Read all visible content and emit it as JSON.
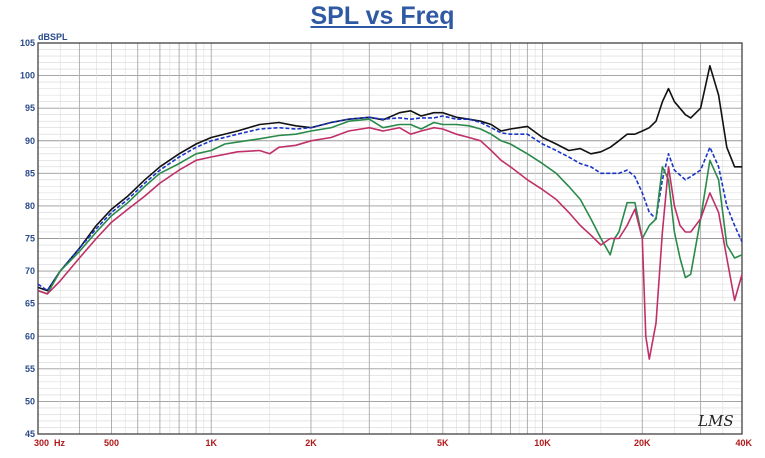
{
  "title": "SPL vs Freq",
  "chart_data": {
    "type": "line",
    "title": "SPL vs Freq",
    "xlabel": "Hz",
    "ylabel": "dBSPL",
    "xscale": "log",
    "xlim": [
      300,
      40000
    ],
    "ylim": [
      45,
      105
    ],
    "yticks": [
      45,
      50,
      55,
      60,
      65,
      70,
      75,
      80,
      85,
      90,
      95,
      100,
      105
    ],
    "xtick_labels": [
      {
        "x": 300,
        "label": "300"
      },
      {
        "x": 500,
        "label": "500"
      },
      {
        "x": 1000,
        "label": "1K"
      },
      {
        "x": 2000,
        "label": "2K"
      },
      {
        "x": 5000,
        "label": "5K"
      },
      {
        "x": 10000,
        "label": "10K"
      },
      {
        "x": 20000,
        "label": "20K"
      },
      {
        "x": 40000,
        "label": "40K"
      }
    ],
    "grid": true,
    "legend": "none",
    "series": [
      {
        "color": "#111111",
        "dash": "solid",
        "points": [
          [
            300,
            67.5
          ],
          [
            320,
            67
          ],
          [
            350,
            70
          ],
          [
            400,
            73.5
          ],
          [
            450,
            77
          ],
          [
            500,
            79.5
          ],
          [
            560,
            81.5
          ],
          [
            630,
            84
          ],
          [
            700,
            86
          ],
          [
            800,
            88
          ],
          [
            900,
            89.5
          ],
          [
            1000,
            90.5
          ],
          [
            1200,
            91.5
          ],
          [
            1400,
            92.5
          ],
          [
            1600,
            92.8
          ],
          [
            1800,
            92.3
          ],
          [
            2000,
            92
          ],
          [
            2300,
            92.8
          ],
          [
            2600,
            93.3
          ],
          [
            3000,
            93.6
          ],
          [
            3300,
            93.2
          ],
          [
            3700,
            94.3
          ],
          [
            4000,
            94.6
          ],
          [
            4300,
            93.8
          ],
          [
            4700,
            94.3
          ],
          [
            5000,
            94.3
          ],
          [
            5500,
            93.6
          ],
          [
            6000,
            93.3
          ],
          [
            6500,
            93
          ],
          [
            7000,
            92.5
          ],
          [
            7500,
            91.5
          ],
          [
            8000,
            91.8
          ],
          [
            9000,
            92.2
          ],
          [
            10000,
            90.5
          ],
          [
            11000,
            89.5
          ],
          [
            12000,
            88.5
          ],
          [
            13000,
            88.8
          ],
          [
            14000,
            88
          ],
          [
            15000,
            88.3
          ],
          [
            16000,
            89
          ],
          [
            17000,
            90
          ],
          [
            18000,
            91
          ],
          [
            19000,
            91
          ],
          [
            20000,
            91.5
          ],
          [
            21000,
            92
          ],
          [
            22000,
            93
          ],
          [
            23000,
            96
          ],
          [
            24000,
            98
          ],
          [
            25000,
            96
          ],
          [
            27000,
            94
          ],
          [
            28000,
            93.5
          ],
          [
            30000,
            95
          ],
          [
            32000,
            101.5
          ],
          [
            34000,
            97
          ],
          [
            36000,
            89
          ],
          [
            38000,
            86
          ],
          [
            40000,
            86
          ]
        ]
      },
      {
        "color": "#1a35c8",
        "dash": "4,2",
        "points": [
          [
            300,
            68
          ],
          [
            320,
            67
          ],
          [
            350,
            70
          ],
          [
            400,
            73.5
          ],
          [
            450,
            76.5
          ],
          [
            500,
            79
          ],
          [
            560,
            81
          ],
          [
            630,
            83.5
          ],
          [
            700,
            85.5
          ],
          [
            800,
            87.5
          ],
          [
            900,
            89
          ],
          [
            1000,
            90
          ],
          [
            1200,
            91
          ],
          [
            1400,
            91.8
          ],
          [
            1600,
            92
          ],
          [
            1800,
            91.8
          ],
          [
            2000,
            92
          ],
          [
            2300,
            92.8
          ],
          [
            2600,
            93.3
          ],
          [
            3000,
            93.6
          ],
          [
            3300,
            93.3
          ],
          [
            3700,
            93.5
          ],
          [
            4000,
            93.3
          ],
          [
            4300,
            93.5
          ],
          [
            4700,
            93.5
          ],
          [
            5000,
            93.8
          ],
          [
            5500,
            93.3
          ],
          [
            6000,
            93.3
          ],
          [
            6500,
            92.8
          ],
          [
            7000,
            92
          ],
          [
            7500,
            91.2
          ],
          [
            8000,
            91
          ],
          [
            9000,
            91
          ],
          [
            10000,
            89.5
          ],
          [
            11000,
            88.5
          ],
          [
            12000,
            87.5
          ],
          [
            13000,
            86.5
          ],
          [
            14000,
            86
          ],
          [
            15000,
            85
          ],
          [
            16000,
            85
          ],
          [
            17000,
            85
          ],
          [
            18000,
            85.5
          ],
          [
            19000,
            84.5
          ],
          [
            20000,
            82
          ],
          [
            21000,
            79
          ],
          [
            22000,
            78
          ],
          [
            23000,
            84
          ],
          [
            24000,
            88
          ],
          [
            25000,
            85.5
          ],
          [
            27000,
            84
          ],
          [
            28000,
            84.5
          ],
          [
            30000,
            85.5
          ],
          [
            32000,
            89
          ],
          [
            34000,
            86
          ],
          [
            36000,
            80
          ],
          [
            38000,
            77
          ],
          [
            40000,
            74.5
          ]
        ]
      },
      {
        "color": "#2a8a4a",
        "dash": "solid",
        "points": [
          [
            300,
            67
          ],
          [
            320,
            66.5
          ],
          [
            350,
            70
          ],
          [
            400,
            73
          ],
          [
            450,
            76
          ],
          [
            500,
            78.5
          ],
          [
            560,
            80.5
          ],
          [
            630,
            83
          ],
          [
            700,
            85
          ],
          [
            800,
            86.5
          ],
          [
            900,
            88
          ],
          [
            1000,
            88.5
          ],
          [
            1100,
            89.5
          ],
          [
            1200,
            89.8
          ],
          [
            1400,
            90.3
          ],
          [
            1600,
            90.8
          ],
          [
            1800,
            91
          ],
          [
            2000,
            91.5
          ],
          [
            2300,
            92
          ],
          [
            2600,
            93
          ],
          [
            3000,
            93.3
          ],
          [
            3300,
            92
          ],
          [
            3700,
            92.5
          ],
          [
            4000,
            92.5
          ],
          [
            4300,
            91.8
          ],
          [
            4700,
            92.8
          ],
          [
            5000,
            92.5
          ],
          [
            5500,
            92.5
          ],
          [
            6000,
            92.3
          ],
          [
            6500,
            91.8
          ],
          [
            7000,
            91
          ],
          [
            7500,
            90
          ],
          [
            8000,
            89.5
          ],
          [
            9000,
            88
          ],
          [
            10000,
            86.5
          ],
          [
            11000,
            85
          ],
          [
            12000,
            83
          ],
          [
            13000,
            81
          ],
          [
            14000,
            78
          ],
          [
            15000,
            75
          ],
          [
            16000,
            72.5
          ],
          [
            16500,
            75
          ],
          [
            17000,
            76
          ],
          [
            18000,
            80.5
          ],
          [
            19000,
            80.5
          ],
          [
            20000,
            75
          ],
          [
            21000,
            77
          ],
          [
            22000,
            78
          ],
          [
            23000,
            86
          ],
          [
            24000,
            84
          ],
          [
            25000,
            76
          ],
          [
            26000,
            72
          ],
          [
            27000,
            69
          ],
          [
            28000,
            69.5
          ],
          [
            30000,
            78
          ],
          [
            32000,
            87
          ],
          [
            34000,
            84
          ],
          [
            36000,
            74
          ],
          [
            38000,
            72
          ],
          [
            40000,
            72.5
          ]
        ]
      },
      {
        "color": "#c03068",
        "dash": "solid",
        "points": [
          [
            300,
            67
          ],
          [
            320,
            66.5
          ],
          [
            350,
            68.5
          ],
          [
            400,
            72
          ],
          [
            450,
            75
          ],
          [
            500,
            77.5
          ],
          [
            560,
            79.5
          ],
          [
            630,
            81.5
          ],
          [
            700,
            83.5
          ],
          [
            800,
            85.5
          ],
          [
            900,
            87
          ],
          [
            1000,
            87.5
          ],
          [
            1200,
            88.3
          ],
          [
            1400,
            88.5
          ],
          [
            1500,
            88
          ],
          [
            1600,
            89
          ],
          [
            1800,
            89.3
          ],
          [
            2000,
            90
          ],
          [
            2300,
            90.5
          ],
          [
            2600,
            91.5
          ],
          [
            3000,
            92
          ],
          [
            3300,
            91.5
          ],
          [
            3700,
            92
          ],
          [
            4000,
            91
          ],
          [
            4300,
            91.5
          ],
          [
            4700,
            92
          ],
          [
            5000,
            91.8
          ],
          [
            5500,
            91
          ],
          [
            6000,
            90.5
          ],
          [
            6500,
            90
          ],
          [
            7000,
            88.5
          ],
          [
            7500,
            87
          ],
          [
            8000,
            86
          ],
          [
            9000,
            84
          ],
          [
            10000,
            82.5
          ],
          [
            11000,
            81
          ],
          [
            12000,
            79
          ],
          [
            13000,
            77
          ],
          [
            14000,
            75.5
          ],
          [
            15000,
            74
          ],
          [
            16000,
            75
          ],
          [
            17000,
            75
          ],
          [
            18000,
            77
          ],
          [
            19000,
            79.5
          ],
          [
            20000,
            75
          ],
          [
            20500,
            60
          ],
          [
            21000,
            56.5
          ],
          [
            22000,
            62
          ],
          [
            23000,
            76
          ],
          [
            24000,
            86
          ],
          [
            25000,
            80
          ],
          [
            26000,
            77
          ],
          [
            27000,
            76
          ],
          [
            28000,
            76
          ],
          [
            30000,
            78
          ],
          [
            32000,
            82
          ],
          [
            34000,
            79
          ],
          [
            36000,
            72
          ],
          [
            38000,
            65.5
          ],
          [
            40000,
            69.5
          ]
        ]
      }
    ]
  },
  "logo_text": "LMS"
}
